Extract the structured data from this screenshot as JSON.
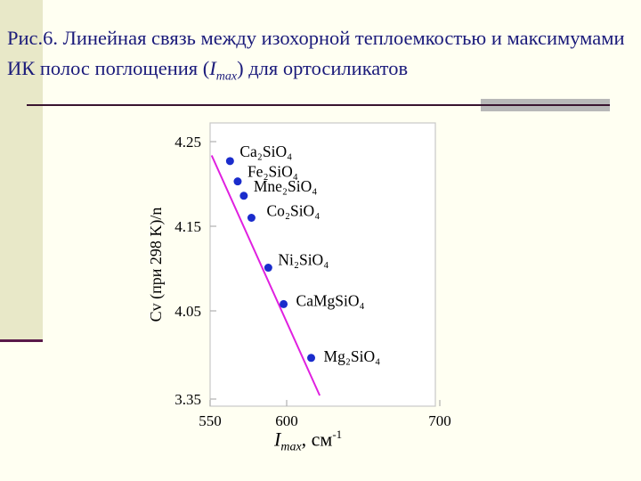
{
  "slide": {
    "title_part1": "Рис.6. Линейная связь между изохорной теплоемкостью и максимумами ИК полос поглощения (",
    "title_var": "I",
    "title_sub": "max",
    "title_part2": ") для ортосиликатов"
  },
  "colors": {
    "background": "#fffff2",
    "title_text": "#1a1a7a",
    "points": "#1a2ccc",
    "fit_line": "#e020e0",
    "left_band": "#e8e8c8",
    "rule": "#3a1530"
  },
  "chart_data": {
    "type": "scatter",
    "xlabel_var": "I",
    "xlabel_sub": "max",
    "xlabel_unit": ", см",
    "xlabel_sup": "-1",
    "ylabel": "Cv (при 298 K)/n",
    "xlim": [
      550,
      710
    ],
    "ylim": [
      3.35,
      4.25
    ],
    "x_ticks": [
      550,
      600,
      700
    ],
    "y_ticks": [
      {
        "label": "4.25",
        "value": 4.25
      },
      {
        "label": "4.15",
        "value": 4.15
      },
      {
        "label": "4.05",
        "value": 4.05
      },
      {
        "label": "3.35",
        "value": 3.35
      }
    ],
    "points": [
      {
        "label": "Ca₂SiO₄",
        "x": 563,
        "y": 4.227
      },
      {
        "label": "Fe₂SiO₄",
        "x": 568,
        "y": 4.203
      },
      {
        "label": "Mne₂SiO₄",
        "x": 572,
        "y": 4.186
      },
      {
        "label": "Co₂SiO₄",
        "x": 577,
        "y": 4.16
      },
      {
        "label": "Ni₂SiO₄",
        "x": 588,
        "y": 4.101
      },
      {
        "label": "CaMgSiO₄",
        "x": 598,
        "y": 4.058
      },
      {
        "label": "Mg₂SiO₄",
        "x": 616,
        "y": 3.976
      }
    ],
    "fit_line": {
      "x": [
        558,
        621
      ],
      "y": [
        4.24,
        3.95
      ]
    },
    "grid": false
  }
}
